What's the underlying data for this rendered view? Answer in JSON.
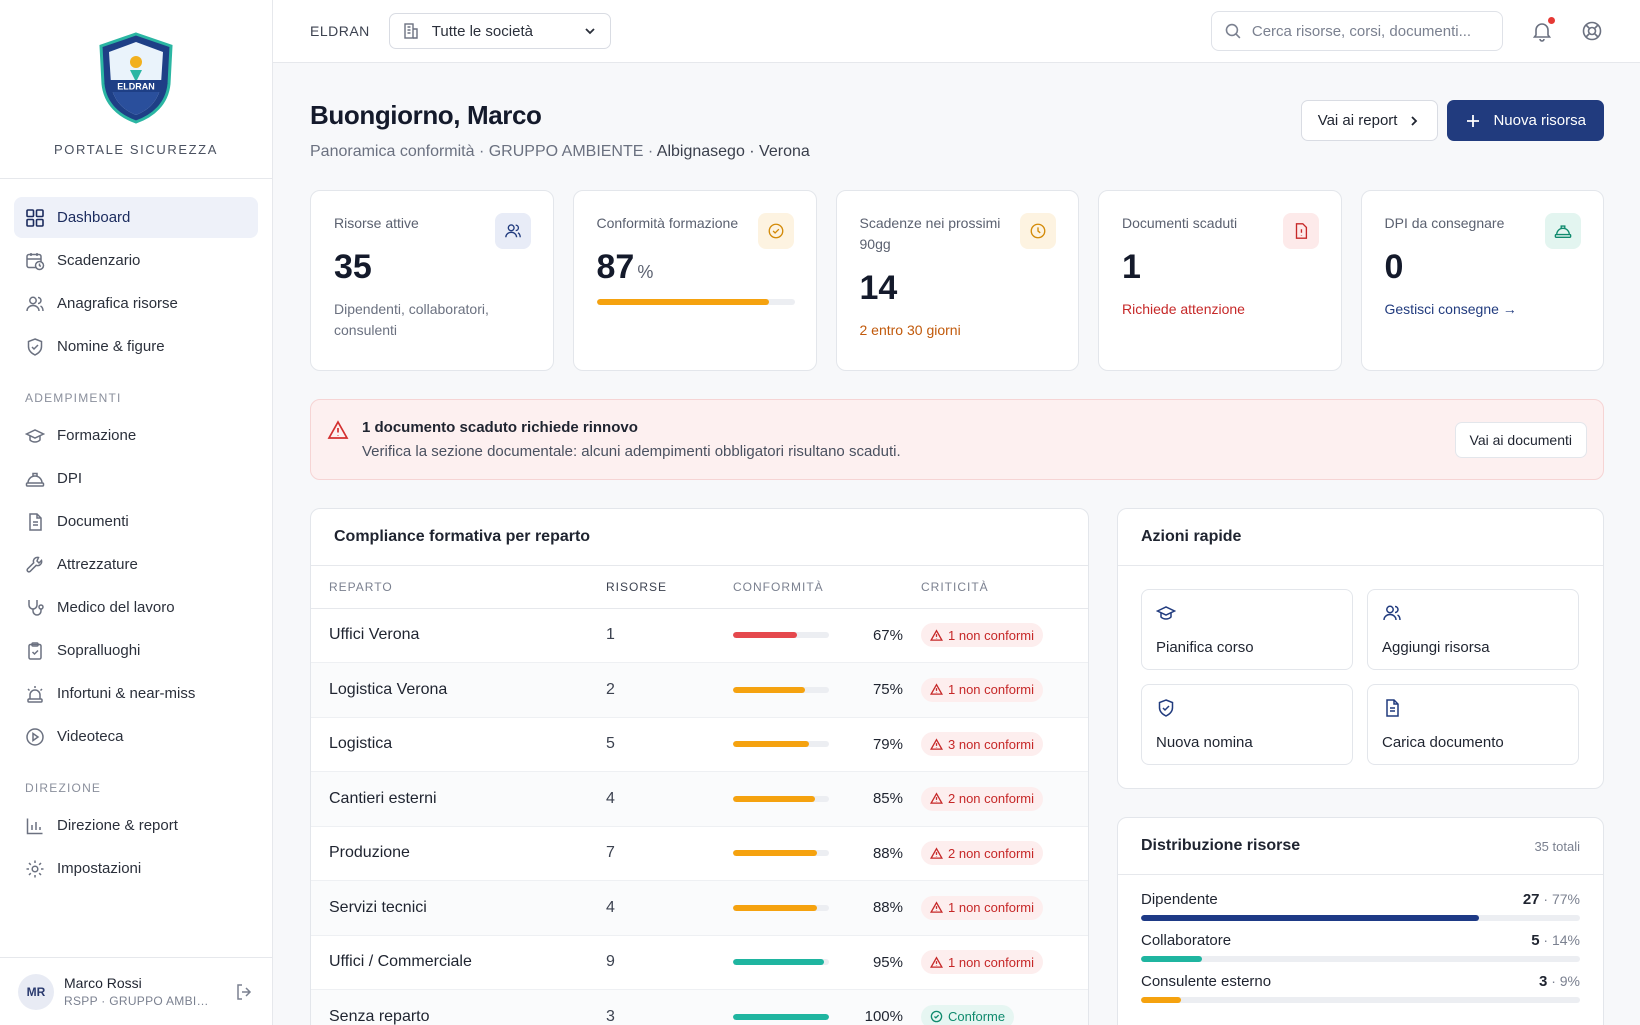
{
  "brand": {
    "logo_text": "ELDRAN",
    "subtitle": "PORTALE SICUREZZA"
  },
  "sidebar": {
    "items": [
      {
        "label": "Dashboard",
        "icon": "grid-icon"
      },
      {
        "label": "Scadenzario",
        "icon": "calendar-clock-icon"
      },
      {
        "label": "Anagrafica risorse",
        "icon": "users-icon"
      },
      {
        "label": "Nomine & figure",
        "icon": "shield-check-icon"
      }
    ],
    "section_adempimenti": "ADEMPIMENTI",
    "adempimenti": [
      {
        "label": "Formazione",
        "icon": "graduation-cap-icon"
      },
      {
        "label": "DPI",
        "icon": "hard-hat-icon"
      },
      {
        "label": "Documenti",
        "icon": "document-icon"
      },
      {
        "label": "Attrezzature",
        "icon": "wrench-icon"
      },
      {
        "label": "Medico del lavoro",
        "icon": "stethoscope-icon"
      },
      {
        "label": "Sopralluoghi",
        "icon": "clipboard-check-icon"
      },
      {
        "label": "Infortuni & near-miss",
        "icon": "siren-icon"
      },
      {
        "label": "Videoteca",
        "icon": "play-circle-icon"
      }
    ],
    "section_direzione": "DIREZIONE",
    "direzione": [
      {
        "label": "Direzione & report",
        "icon": "bar-chart-icon"
      },
      {
        "label": "Impostazioni",
        "icon": "gear-icon"
      }
    ]
  },
  "user": {
    "initials": "MR",
    "name": "Marco Rossi",
    "role": "RSPP · GRUPPO AMBIENTE"
  },
  "topbar": {
    "org": "ELDRAN",
    "company_select": "Tutte le società",
    "search_placeholder": "Cerca risorse, corsi, documenti..."
  },
  "header": {
    "greeting": "Buongiorno, Marco",
    "subtitle_prefix": "Panoramica conformità · GRUPPO AMBIENTE · ",
    "subtitle_sites": "Albignasego · Verona",
    "report_button": "Vai ai report",
    "new_button": "Nuova risorsa"
  },
  "kpis": [
    {
      "label": "Risorse attive",
      "value": "35",
      "note": "Dipendenti, collaboratori, consulenti",
      "icon": "users-icon",
      "accent": "#e8ecf7"
    },
    {
      "label": "Conformità formazione",
      "value": "87",
      "unit": "%",
      "progress": 0.87,
      "icon": "check-circle-icon",
      "accent": "#fdf3e1"
    },
    {
      "label": "Scadenze nei prossimi 90gg",
      "value": "14",
      "note": "2 entro 30 giorni",
      "icon": "clock-icon",
      "accent": "#fdf3e1"
    },
    {
      "label": "Documenti scaduti",
      "value": "1",
      "note": "Richiede attenzione",
      "icon": "file-alert-icon",
      "accent": "#fdeaea"
    },
    {
      "label": "DPI da consegnare",
      "value": "0",
      "note": "Gestisci consegne →",
      "icon": "hard-hat-icon",
      "accent": "#e3f5f0"
    }
  ],
  "alert": {
    "title": "1 documento scaduto richiede rinnovo",
    "text": "Verifica la sezione documentale: alcuni adempimenti obbligatori risultano scaduti.",
    "button": "Vai ai documenti"
  },
  "compliance": {
    "title": "Compliance formativa per reparto",
    "columns": [
      "REPARTO",
      "RISORSE",
      "CONFORMITÀ",
      "CRITICITÀ"
    ],
    "rows": [
      {
        "reparto": "Uffici Verona",
        "risorse": "1",
        "pct": "67%",
        "value": 0.67,
        "color": "#e5484d",
        "criticita": "1 non conformi",
        "ok": false
      },
      {
        "reparto": "Logistica Verona",
        "risorse": "2",
        "pct": "75%",
        "value": 0.75,
        "color": "#f5a20f",
        "criticita": "1 non conformi",
        "ok": false
      },
      {
        "reparto": "Logistica",
        "risorse": "5",
        "pct": "79%",
        "value": 0.79,
        "color": "#f5a20f",
        "criticita": "3 non conformi",
        "ok": false
      },
      {
        "reparto": "Cantieri esterni",
        "risorse": "4",
        "pct": "85%",
        "value": 0.85,
        "color": "#f5a20f",
        "criticita": "2 non conformi",
        "ok": false
      },
      {
        "reparto": "Produzione",
        "risorse": "7",
        "pct": "88%",
        "value": 0.88,
        "color": "#f5a20f",
        "criticita": "2 non conformi",
        "ok": false
      },
      {
        "reparto": "Servizi tecnici",
        "risorse": "4",
        "pct": "88%",
        "value": 0.88,
        "color": "#f5a20f",
        "criticita": "1 non conformi",
        "ok": false
      },
      {
        "reparto": "Uffici / Commerciale",
        "risorse": "9",
        "pct": "95%",
        "value": 0.95,
        "color": "#1fb5a0",
        "criticita": "1 non conformi",
        "ok": false
      },
      {
        "reparto": "Senza reparto",
        "risorse": "3",
        "pct": "100%",
        "value": 1.0,
        "color": "#1fb5a0",
        "criticita": "Conforme",
        "ok": true
      }
    ]
  },
  "quick_actions": {
    "title": "Azioni rapide",
    "items": [
      {
        "label": "Pianifica corso",
        "icon": "graduation-cap-icon"
      },
      {
        "label": "Aggiungi risorsa",
        "icon": "users-icon"
      },
      {
        "label": "Nuova nomina",
        "icon": "shield-check-icon"
      },
      {
        "label": "Carica documento",
        "icon": "document-icon"
      }
    ]
  },
  "distribution": {
    "title": "Distribuzione risorse",
    "total": "35 totali",
    "rows": [
      {
        "label": "Dipendente",
        "count": "27",
        "pct": " · 77%",
        "value": 0.77,
        "color": "#1e3a86"
      },
      {
        "label": "Collaboratore",
        "count": "5",
        "pct": " · 14%",
        "value": 0.14,
        "color": "#1fb5a0"
      },
      {
        "label": "Consulente esterno",
        "count": "3",
        "pct": " · 9%",
        "value": 0.09,
        "color": "#f5a20f"
      }
    ]
  }
}
